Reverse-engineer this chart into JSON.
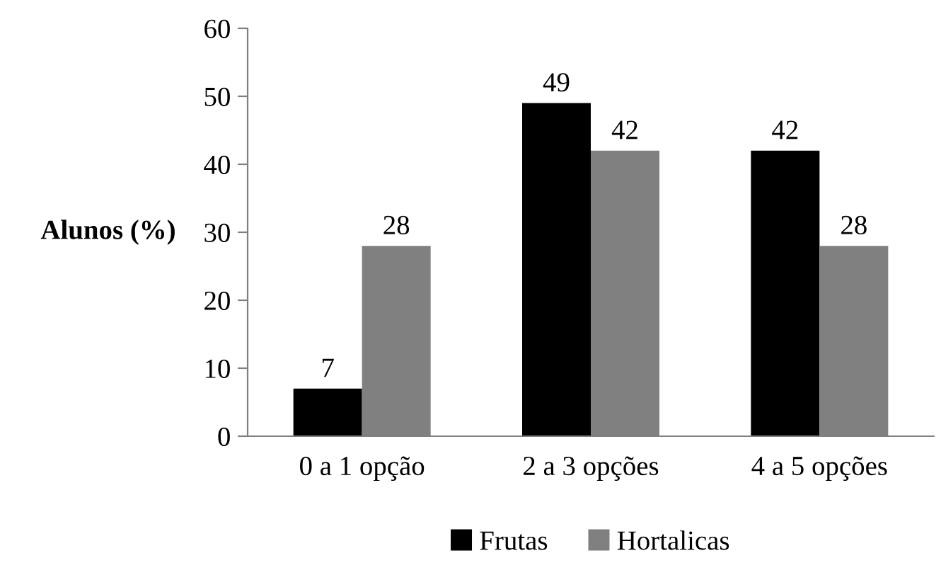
{
  "chart_data": {
    "type": "bar",
    "ylabel": "Alunos (%)",
    "categories": [
      "0 a 1 opção",
      "2 a 3 opções",
      "4 a 5 opções"
    ],
    "series": [
      {
        "name": "Frutas",
        "color": "#000000",
        "values": [
          7,
          49,
          42
        ]
      },
      {
        "name": "Hortalicas",
        "color": "#808080",
        "values": [
          28,
          42,
          28
        ]
      }
    ],
    "ylim": [
      0,
      60
    ],
    "yticks": [
      0,
      10,
      20,
      30,
      40,
      50,
      60
    ],
    "data_labels": true,
    "grid": false,
    "legend": "bottom"
  }
}
